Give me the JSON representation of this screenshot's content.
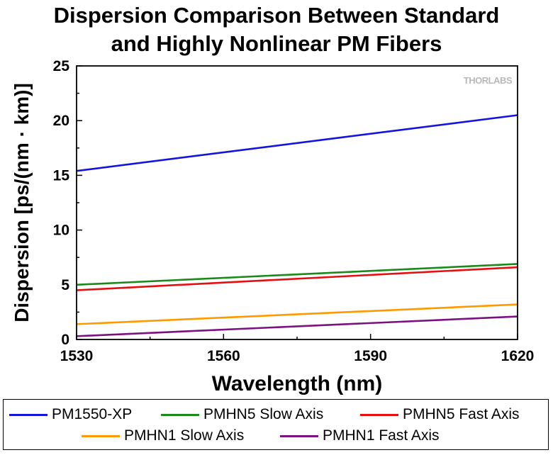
{
  "chart_data": {
    "type": "line",
    "title_lines": [
      "Dispersion Comparison Between Standard",
      "and Highly Nonlinear PM Fibers"
    ],
    "xlabel": "Wavelength (nm)",
    "ylabel": "Dispersion [ps/(nm · km)]",
    "xlim": [
      1530,
      1620
    ],
    "ylim": [
      0,
      25
    ],
    "xticks": [
      1530,
      1560,
      1590,
      1620
    ],
    "yticks": [
      0,
      5,
      10,
      15,
      20,
      25
    ],
    "grid": false,
    "legend_position": "bottom",
    "watermark": "THORLABS",
    "series": [
      {
        "name": "PM1550-XP",
        "color": "#1414dc",
        "x": [
          1530,
          1620
        ],
        "y": [
          15.4,
          20.5
        ]
      },
      {
        "name": "PMHN5 Slow Axis",
        "color": "#1a8a1a",
        "x": [
          1530,
          1620
        ],
        "y": [
          5.0,
          6.9
        ]
      },
      {
        "name": "PMHN5 Fast Axis",
        "color": "#e41010",
        "x": [
          1530,
          1620
        ],
        "y": [
          4.5,
          6.6
        ]
      },
      {
        "name": "PMHN1 Slow Axis",
        "color": "#ff9900",
        "x": [
          1530,
          1620
        ],
        "y": [
          1.4,
          3.2
        ]
      },
      {
        "name": "PMHN1 Fast Axis",
        "color": "#7b1280",
        "x": [
          1530,
          1620
        ],
        "y": [
          0.3,
          2.1
        ]
      }
    ]
  }
}
